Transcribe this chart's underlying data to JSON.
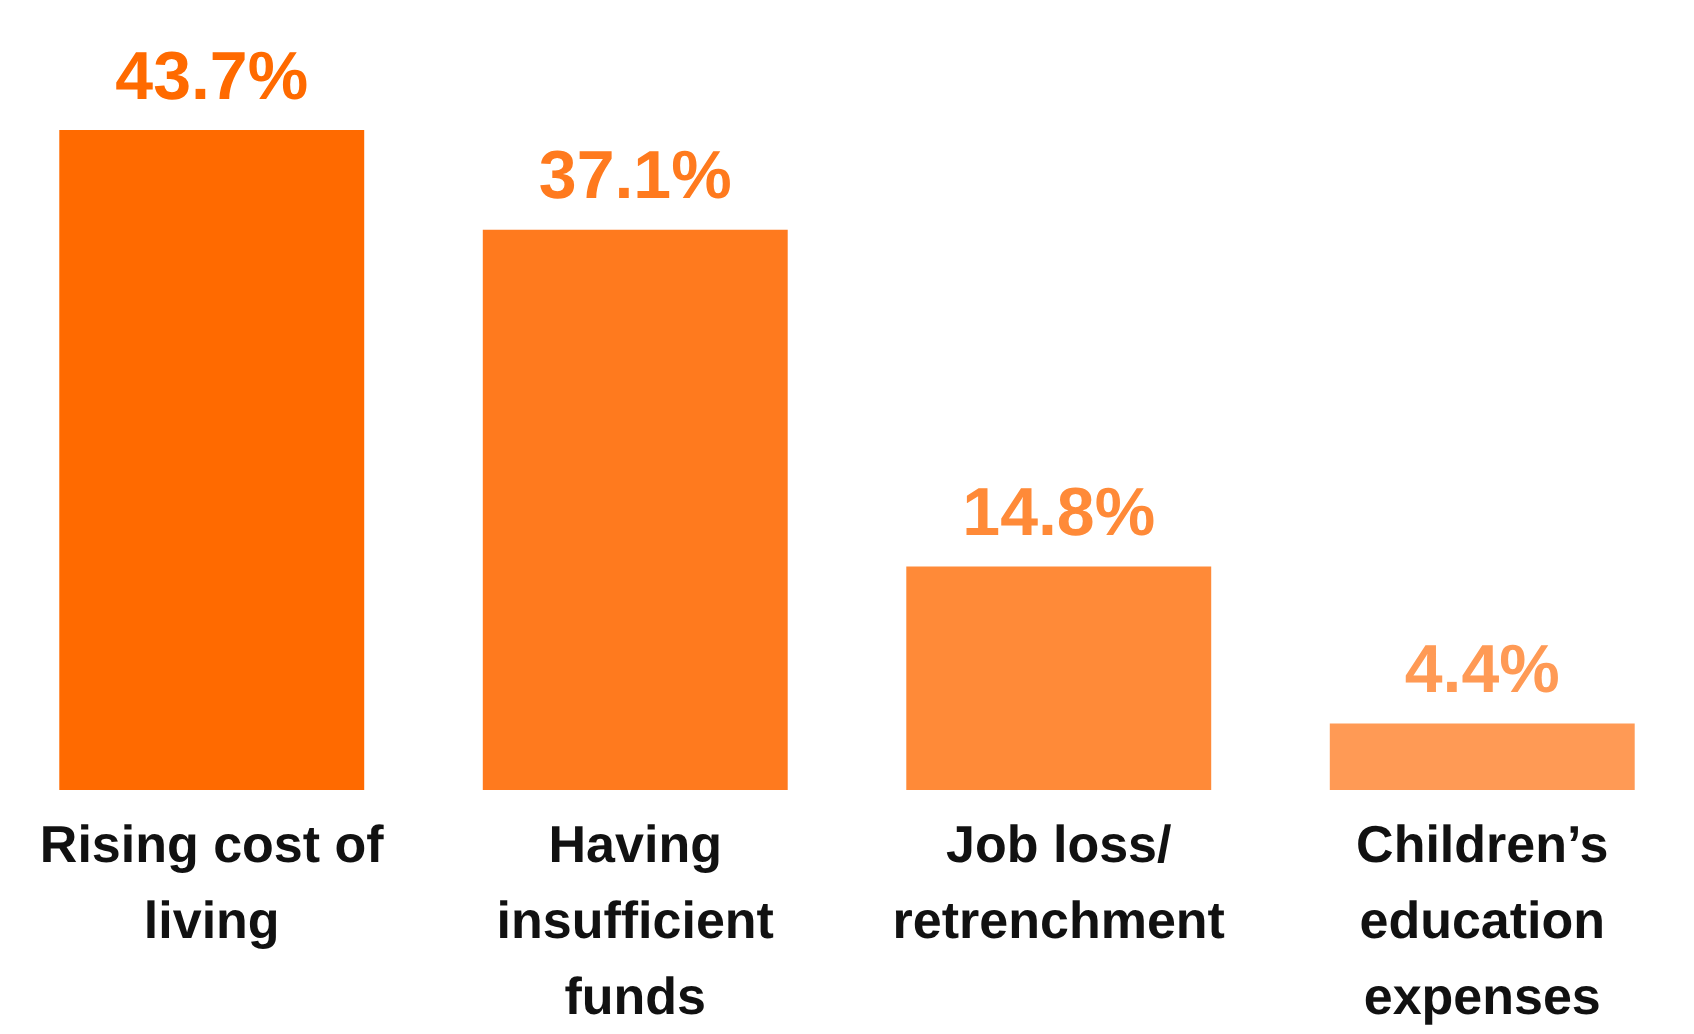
{
  "chart_data": {
    "type": "bar",
    "categories": [
      "Rising cost of living",
      "Having insufficient funds",
      "Job loss/ retrenchment",
      "Children’s education expenses"
    ],
    "values": [
      43.7,
      37.1,
      14.8,
      4.4
    ],
    "colors": [
      "#ff6a00",
      "#ff7a1e",
      "#ff8a38",
      "#ff9a55"
    ],
    "value_labels": [
      "43.7%",
      "37.1%",
      "14.8%",
      "4.4%"
    ],
    "grid": false,
    "legend": false
  }
}
